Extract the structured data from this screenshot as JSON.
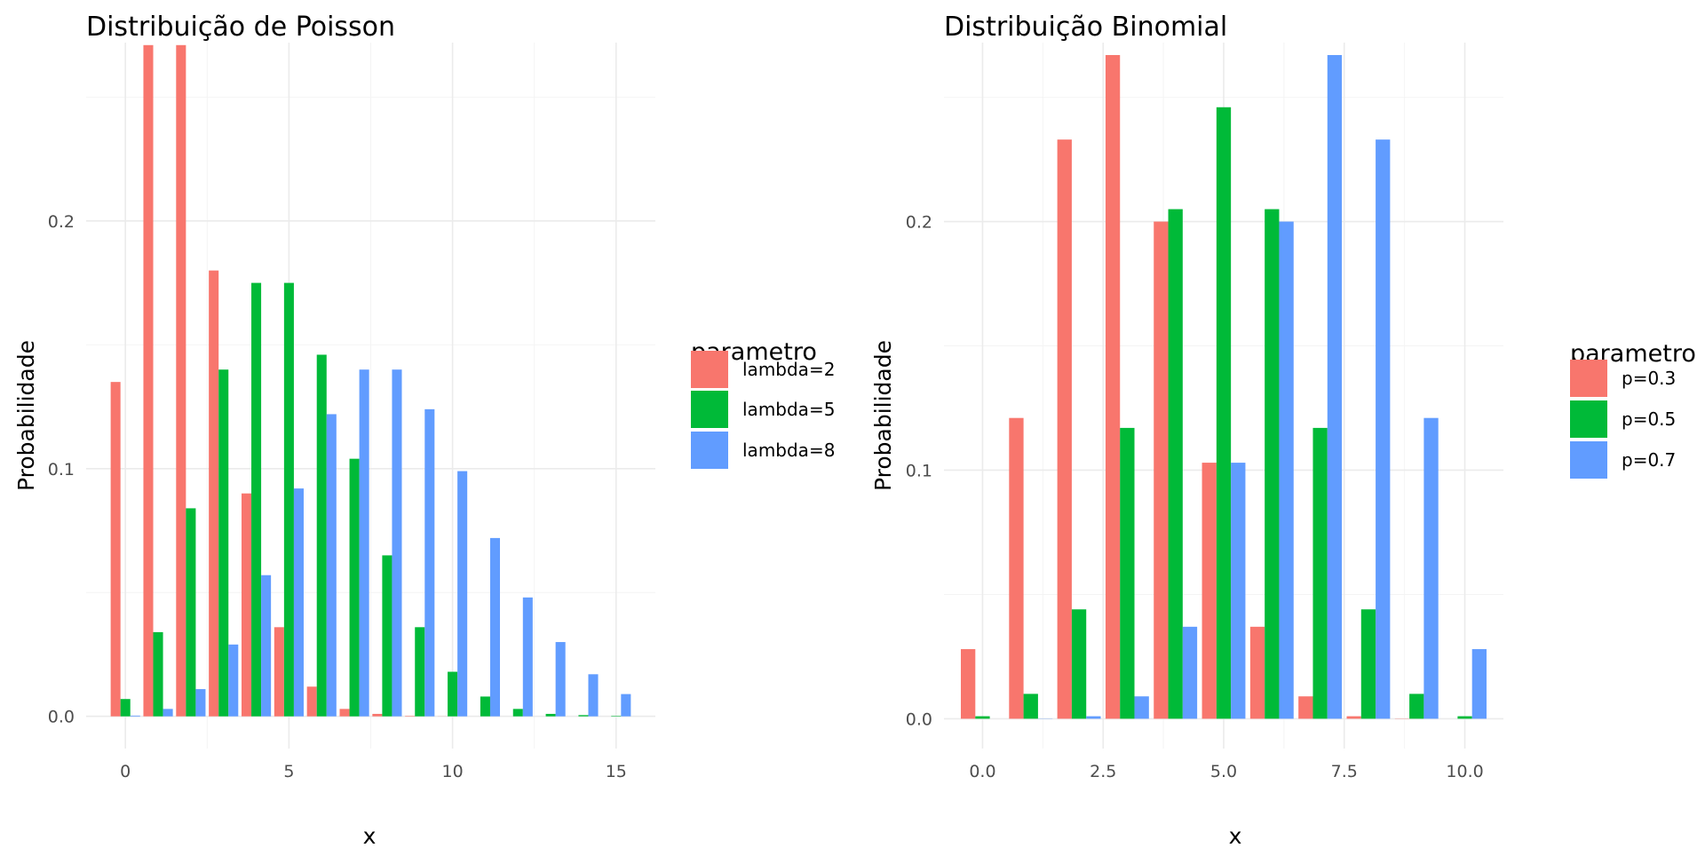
{
  "chart_data": [
    {
      "type": "bar",
      "title": "Distribuição de Poisson",
      "xlabel": "x",
      "ylabel": "Probabilidade",
      "xlim": [
        -1.2,
        16.2
      ],
      "ylim": [
        -0.013,
        0.272
      ],
      "x_ticks": [
        0,
        5,
        10,
        15
      ],
      "x_tick_labels": [
        "0",
        "5",
        "10",
        "15"
      ],
      "y_ticks": [
        0.0,
        0.1,
        0.2
      ],
      "y_tick_labels": [
        "0.0",
        "0.1",
        "0.2"
      ],
      "grid": true,
      "legend_title": "parametro",
      "legend_position": "right",
      "x": [
        0,
        1,
        2,
        3,
        4,
        5,
        6,
        7,
        8,
        9,
        10,
        11,
        12,
        13,
        14,
        15
      ],
      "series": [
        {
          "name": "lambda=2",
          "color": "#F8766D",
          "values": [
            0.135,
            0.271,
            0.271,
            0.18,
            0.09,
            0.036,
            0.012,
            0.003,
            0.001,
            0.0002,
            4e-05,
            0,
            0,
            0,
            0,
            0
          ]
        },
        {
          "name": "lambda=5",
          "color": "#00BA38",
          "values": [
            0.007,
            0.034,
            0.084,
            0.14,
            0.175,
            0.175,
            0.146,
            0.104,
            0.065,
            0.036,
            0.018,
            0.008,
            0.003,
            0.001,
            0.0005,
            0.0002
          ]
        },
        {
          "name": "lambda=8",
          "color": "#619CFF",
          "values": [
            0.0003,
            0.003,
            0.011,
            0.029,
            0.057,
            0.092,
            0.122,
            0.14,
            0.14,
            0.124,
            0.099,
            0.072,
            0.048,
            0.03,
            0.017,
            0.009
          ]
        }
      ]
    },
    {
      "type": "bar",
      "title": "Distribuição Binomial",
      "xlabel": "x",
      "ylabel": "Probabilidade",
      "xlim": [
        -0.8,
        10.8
      ],
      "ylim": [
        -0.012,
        0.272
      ],
      "x_ticks": [
        0,
        2.5,
        5,
        7.5,
        10
      ],
      "x_tick_labels": [
        "0.0",
        "2.5",
        "5.0",
        "7.5",
        "10.0"
      ],
      "y_ticks": [
        0.0,
        0.1,
        0.2
      ],
      "y_tick_labels": [
        "0.0",
        "0.1",
        "0.2"
      ],
      "grid": true,
      "legend_title": "parametro",
      "legend_position": "right",
      "x": [
        0,
        1,
        2,
        3,
        4,
        5,
        6,
        7,
        8,
        9,
        10
      ],
      "series": [
        {
          "name": "p=0.3",
          "color": "#F8766D",
          "values": [
            0.028,
            0.121,
            0.233,
            0.267,
            0.2,
            0.103,
            0.037,
            0.009,
            0.001,
            0.0001,
            0
          ]
        },
        {
          "name": "p=0.5",
          "color": "#00BA38",
          "values": [
            0.001,
            0.01,
            0.044,
            0.117,
            0.205,
            0.246,
            0.205,
            0.117,
            0.044,
            0.01,
            0.001
          ]
        },
        {
          "name": "p=0.7",
          "color": "#619CFF",
          "values": [
            0,
            0.0001,
            0.001,
            0.009,
            0.037,
            0.103,
            0.2,
            0.267,
            0.233,
            0.121,
            0.028
          ]
        }
      ]
    }
  ]
}
